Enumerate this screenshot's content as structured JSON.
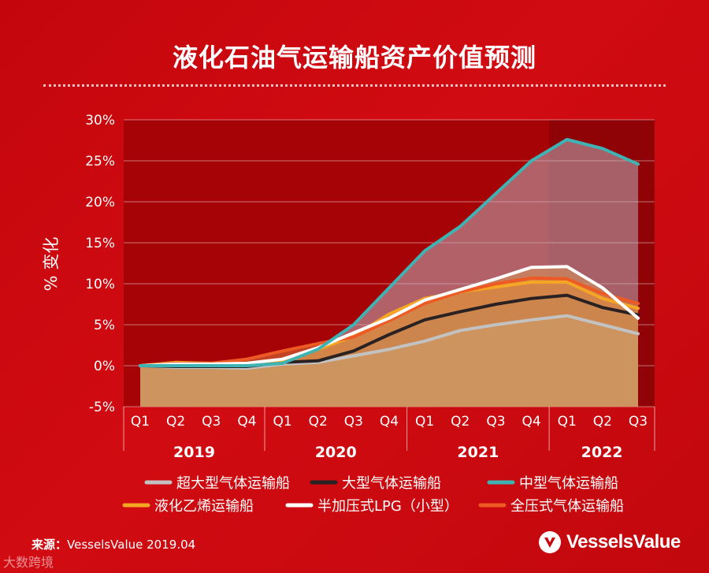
{
  "title": "液化石油气运输船资产价值预测",
  "source_label": "来源：",
  "source_text": "VesselsValue 2019.04",
  "watermark": "大数跨境",
  "brand": {
    "name": "VesselsValue"
  },
  "colors": {
    "background": "#c9070d",
    "plot_bg": "#a60307",
    "plot_bg_forecast": "#8f0206"
  },
  "chart_data": {
    "type": "area",
    "ylabel": "% 变化",
    "ylim": [
      -5,
      30
    ],
    "yticks": [
      -5,
      0,
      5,
      10,
      15,
      20,
      25,
      30
    ],
    "ytick_labels": [
      "-5%",
      "0%",
      "5%",
      "10%",
      "15%",
      "20%",
      "25%",
      "30%"
    ],
    "x_labels": [
      "Q1",
      "Q2",
      "Q3",
      "Q4",
      "Q1",
      "Q2",
      "Q3",
      "Q4",
      "Q1",
      "Q2",
      "Q3",
      "Q4",
      "Q1",
      "Q2",
      "Q3"
    ],
    "year_groups": [
      {
        "label": "2019",
        "quarters": 4
      },
      {
        "label": "2020",
        "quarters": 4
      },
      {
        "label": "2021",
        "quarters": 4
      },
      {
        "label": "2022",
        "quarters": 3
      }
    ],
    "legend_position": "bottom",
    "series": [
      {
        "name": "中型气体运输船",
        "color": "#3fb3b3",
        "values": [
          0,
          0,
          0,
          0,
          0.3,
          2.0,
          5.0,
          9.5,
          14.0,
          17.0,
          21.0,
          25.0,
          27.6,
          26.5,
          24.6
        ]
      },
      {
        "name": "半加压式LPG（小型）",
        "color": "#ffffff",
        "values": [
          0,
          0.2,
          0.2,
          0.3,
          0.8,
          2.2,
          4.0,
          5.8,
          8.0,
          9.3,
          10.6,
          12.0,
          12.1,
          9.5,
          5.8
        ]
      },
      {
        "name": "全压式气体运输船",
        "color": "#ee5a24",
        "values": [
          0,
          0.3,
          0.3,
          0.8,
          1.8,
          2.7,
          3.5,
          5.5,
          7.6,
          9.0,
          10.0,
          10.7,
          10.6,
          8.8,
          7.6
        ]
      },
      {
        "name": "液化乙烯运输船",
        "color": "#f5a623",
        "values": [
          0,
          0.4,
          0.3,
          0.2,
          0.5,
          2.0,
          3.6,
          6.3,
          8.2,
          9.0,
          9.6,
          10.2,
          10.2,
          8.2,
          7.0
        ]
      },
      {
        "name": "大型气体运输船",
        "color": "#2a2222",
        "values": [
          0,
          -0.1,
          -0.1,
          -0.1,
          0.4,
          0.6,
          1.8,
          3.8,
          5.6,
          6.6,
          7.5,
          8.2,
          8.6,
          7.1,
          6.2
        ]
      },
      {
        "name": "超大型气体运输船",
        "color": "#c2c2c2",
        "values": [
          0,
          -0.2,
          -0.2,
          -0.3,
          0.2,
          0.4,
          1.2,
          2.0,
          3.0,
          4.3,
          5.0,
          5.6,
          6.1,
          5.0,
          3.9
        ]
      }
    ],
    "legend_order": [
      "超大型气体运输船",
      "大型气体运输船",
      "中型气体运输船",
      "液化乙烯运输船",
      "半加压式LPG（小型）",
      "全压式气体运输船"
    ]
  }
}
